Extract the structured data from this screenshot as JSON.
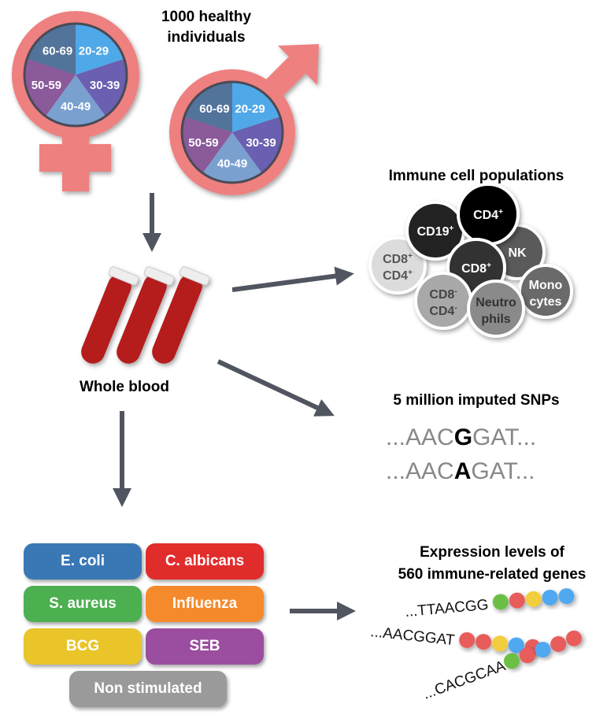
{
  "cohort": {
    "title_line1": "1000 healthy",
    "title_line2": "individuals",
    "age_groups": [
      "20-29",
      "30-39",
      "40-49",
      "50-59",
      "60-69"
    ],
    "age_colors": [
      "#4fa8e8",
      "#6a5fb0",
      "#7aa0d0",
      "#8a5a9a",
      "#52739a"
    ],
    "symbol_color": "#ee8080"
  },
  "blood": {
    "label": "Whole blood",
    "tube_color": "#b51f1f"
  },
  "immune": {
    "title": "Immune cell populations",
    "cells": [
      {
        "l1": "CD8",
        "s1": "+",
        "l2": "CD4",
        "s2": "+",
        "color": "#dcdcdc",
        "text": "#555"
      },
      {
        "l1": "CD19",
        "s1": "+",
        "l2": "",
        "s2": "",
        "color": "#222222",
        "text": "#fff"
      },
      {
        "l1": "NK",
        "s1": "",
        "l2": "",
        "s2": "",
        "color": "#5a5a5a",
        "text": "#fff"
      },
      {
        "l1": "CD4",
        "s1": "+",
        "l2": "",
        "s2": "",
        "color": "#050505",
        "text": "#fff"
      },
      {
        "l1": "CD8",
        "s1": "+",
        "l2": "",
        "s2": "",
        "color": "#333333",
        "text": "#fff"
      },
      {
        "l1": "CD8",
        "s1": "-",
        "l2": "CD4",
        "s2": "-",
        "color": "#a8a8a8",
        "text": "#444"
      },
      {
        "l1": "Mono",
        "s1": "",
        "l2": "cytes",
        "s2": "",
        "color": "#6a6a6a",
        "text": "#fff"
      },
      {
        "l1": "Neutro",
        "s1": "",
        "l2": "phils",
        "s2": "",
        "color": "#8a8a8a",
        "text": "#333"
      }
    ]
  },
  "snps": {
    "title": "5 million imputed SNPs",
    "seq1": {
      "pre": "...AAC",
      "var": "G",
      "post": "GAT..."
    },
    "seq2": {
      "pre": "...AAC",
      "var": "A",
      "post": "GAT..."
    }
  },
  "stimuli": [
    {
      "label": "E. coli",
      "color": "#3a78b5"
    },
    {
      "label": "C. albicans",
      "color": "#e12c2c"
    },
    {
      "label": "S. aureus",
      "color": "#4caf50"
    },
    {
      "label": "Influenza",
      "color": "#f58a2c"
    },
    {
      "label": "BCG",
      "color": "#e9c52a"
    },
    {
      "label": "SEB",
      "color": "#9b4ea0"
    },
    {
      "label": "Non stimulated",
      "color": "#9a9a9a"
    }
  ],
  "expression": {
    "title_line1": "Expression levels of",
    "title_line2": "560 immune-related genes",
    "rows": [
      {
        "seq": "...TTAACGG",
        "beads": [
          "#6cbf44",
          "#e85c5c",
          "#f2cd3c",
          "#4fa8f0",
          "#4fa8f0"
        ]
      },
      {
        "seq": "...AACGGAT",
        "beads": [
          "#e85c5c",
          "#e85c5c",
          "#f2cd3c",
          "#4fa8f0",
          "#e85c5c"
        ]
      },
      {
        "seq": "...CACGCAA",
        "beads": [
          "#6cbf44",
          "#e85c5c",
          "#4fa8f0",
          "#e85c5c",
          "#e85c5c"
        ]
      }
    ]
  }
}
